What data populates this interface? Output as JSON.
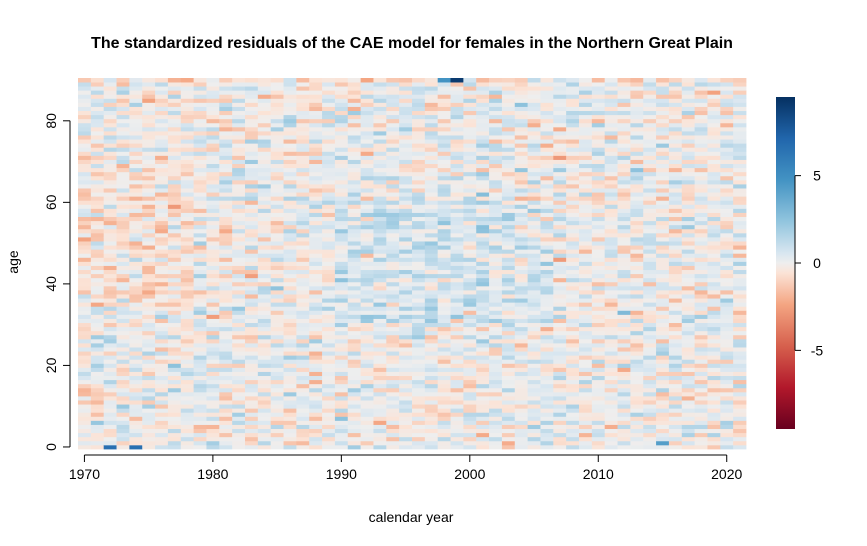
{
  "chart_data": {
    "type": "heatmap",
    "title": "The standardized residuals of the CAE model for females in the Northern Great Plain",
    "xlabel": "calendar year",
    "ylabel": "age",
    "x_range": [
      1970,
      2021
    ],
    "y_range": [
      0,
      90
    ],
    "x_ticks": [
      "1970",
      "1980",
      "1990",
      "2000",
      "2010",
      "2020"
    ],
    "y_ticks": [
      "0",
      "20",
      "40",
      "60",
      "80"
    ],
    "color_scale": {
      "range": [
        -9.5,
        9.5
      ],
      "ticks": [
        "-5",
        "0",
        "5"
      ],
      "low_color": "#67001f",
      "mid_color": "#f7f7f7",
      "high_color": "#053061",
      "palette": "RdBu"
    },
    "grid": false,
    "legend": "right"
  }
}
